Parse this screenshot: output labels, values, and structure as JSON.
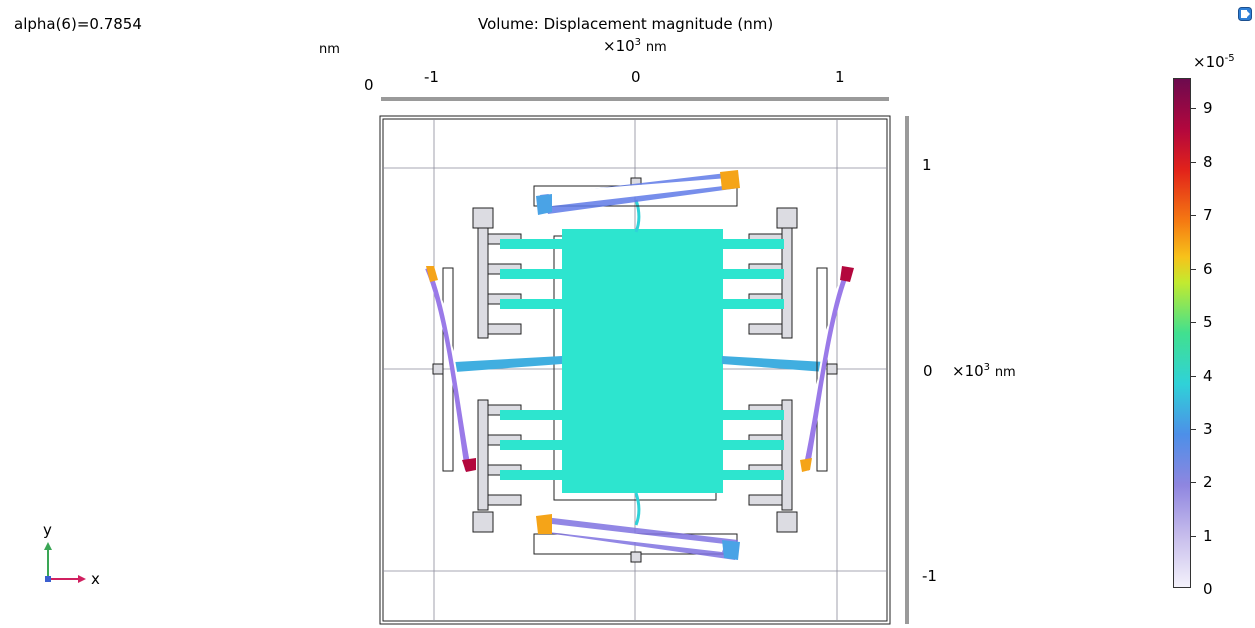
{
  "plot": {
    "parameter_label": "alpha(6)=0.7854",
    "title": "Volume: Displacement magnitude (nm)",
    "top_unit": "nm",
    "x_scale_prefix": "×10",
    "x_scale_exp": "3",
    "x_scale_unit": "nm",
    "y_scale_prefix": "×10",
    "y_scale_exp": "3",
    "y_scale_unit": "nm",
    "zero_label": "0",
    "x_ticks": [
      "-1",
      "0",
      "1"
    ],
    "y_ticks": [
      "1",
      "0",
      "-1"
    ]
  },
  "triad": {
    "y_label": "y",
    "x_label": "x"
  },
  "colorbar": {
    "exponent_prefix": "×10",
    "exponent": "-5",
    "ticks": [
      "9",
      "8",
      "7",
      "6",
      "5",
      "4",
      "3",
      "2",
      "1",
      "0"
    ]
  },
  "colors": {
    "body_fill": "#2de5cf",
    "frame_gray": "#dcdce2",
    "accent_blue": "#4aa3e6"
  },
  "icons": {
    "corner": "view-toggle-icon"
  }
}
